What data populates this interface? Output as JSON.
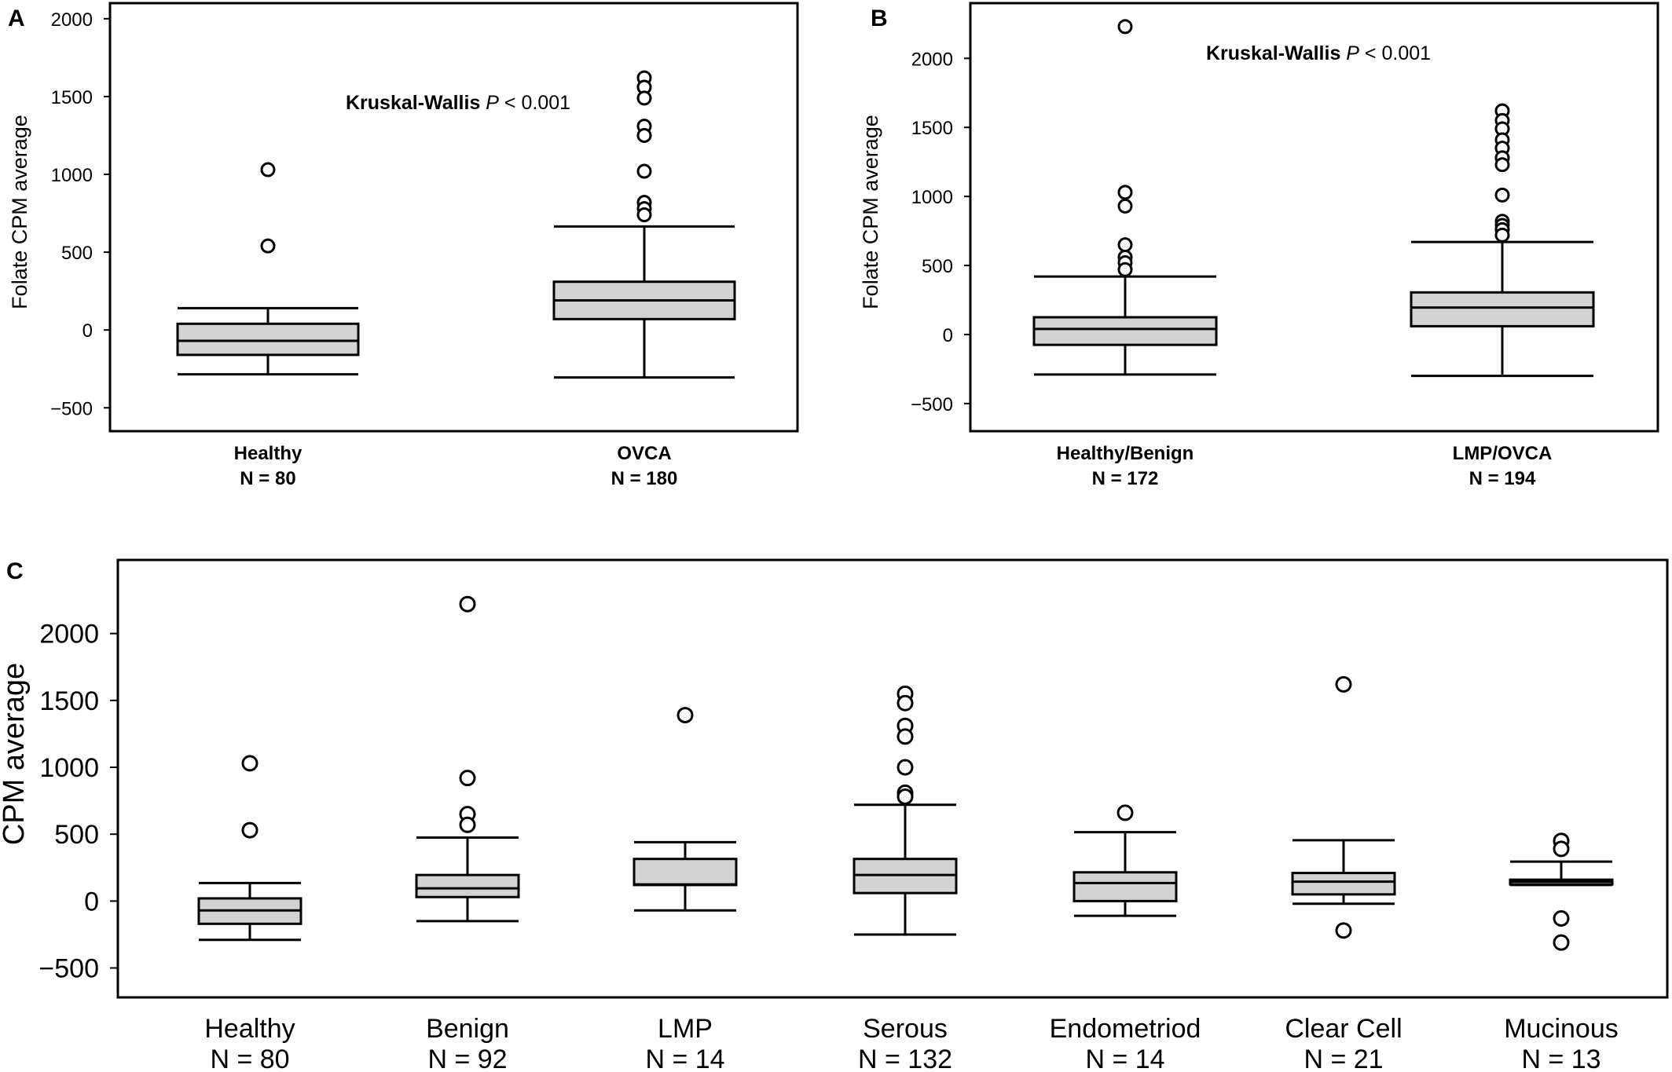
{
  "chart_data": [
    {
      "panel": "A",
      "type": "box",
      "ylabel": "Folate CPM average",
      "yticks": [
        2000,
        1500,
        1000,
        500,
        0,
        -500
      ],
      "ytick_labels": [
        "2000",
        "1500",
        "1000",
        "500",
        "0",
        "−500"
      ],
      "ylim": [
        -650,
        2100
      ],
      "annotation": {
        "prefix": "Kruskal-Wallis ",
        "italic": "P",
        "suffix": " < 0.001"
      },
      "groups": [
        {
          "name": "Healthy",
          "n_label": "N = 80",
          "q1": -160,
          "median": -70,
          "q3": 40,
          "whisker_low": -285,
          "whisker_high": 140,
          "outliers": [
            1030,
            540
          ]
        },
        {
          "name": "OVCA",
          "n_label": "N = 180",
          "q1": 70,
          "median": 190,
          "q3": 310,
          "whisker_low": -305,
          "whisker_high": 665,
          "outliers": [
            1620,
            1560,
            1490,
            1310,
            1250,
            1020,
            820,
            780,
            740
          ]
        }
      ]
    },
    {
      "panel": "B",
      "type": "box",
      "ylabel": "Folate CPM average",
      "yticks": [
        2000,
        1500,
        1000,
        500,
        0,
        -500
      ],
      "ytick_labels": [
        "2000",
        "1500",
        "1000",
        "500",
        "0",
        "−500"
      ],
      "ylim": [
        -700,
        2400
      ],
      "annotation": {
        "prefix": "Kruskal-Wallis ",
        "italic": "P",
        "suffix": " < 0.001"
      },
      "groups": [
        {
          "name": "Healthy/Benign",
          "n_label": "N = 172",
          "q1": -75,
          "median": 40,
          "q3": 125,
          "whisker_low": -290,
          "whisker_high": 420,
          "outliers": [
            2230,
            1030,
            930,
            650,
            560,
            520,
            470
          ]
        },
        {
          "name": "LMP/OVCA",
          "n_label": "N = 194",
          "q1": 60,
          "median": 195,
          "q3": 305,
          "whisker_low": -300,
          "whisker_high": 670,
          "outliers": [
            1620,
            1550,
            1490,
            1410,
            1350,
            1280,
            1230,
            1010,
            820,
            790,
            760,
            720
          ]
        }
      ]
    },
    {
      "panel": "C",
      "type": "box",
      "ylabel": "CPM average",
      "yticks": [
        2000,
        1500,
        1000,
        500,
        0,
        -500
      ],
      "ytick_labels": [
        "2000",
        "1500",
        "1000",
        "500",
        "0",
        "−500"
      ],
      "ylim": [
        -720,
        2550
      ],
      "groups": [
        {
          "name": "Healthy",
          "n_label": "N = 80",
          "q1": -170,
          "median": -70,
          "q3": 20,
          "whisker_low": -290,
          "whisker_high": 135,
          "outliers": [
            1030,
            530
          ]
        },
        {
          "name": "Benign",
          "n_label": "N = 92",
          "q1": 30,
          "median": 95,
          "q3": 195,
          "whisker_low": -150,
          "whisker_high": 475,
          "outliers": [
            2220,
            920,
            650,
            570
          ]
        },
        {
          "name": "LMP",
          "n_label": "N = 14",
          "q1": 120,
          "median": 125,
          "q3": 315,
          "whisker_low": -70,
          "whisker_high": 440,
          "outliers": [
            1390
          ]
        },
        {
          "name": "Serous",
          "n_label": "N = 132",
          "q1": 60,
          "median": 195,
          "q3": 315,
          "whisker_low": -250,
          "whisker_high": 720,
          "outliers": [
            1550,
            1480,
            1310,
            1230,
            1000,
            810,
            780
          ]
        },
        {
          "name": "Endometriod",
          "n_label": "N = 14",
          "q1": 0,
          "median": 135,
          "q3": 215,
          "whisker_low": -110,
          "whisker_high": 515,
          "outliers": [
            660
          ]
        },
        {
          "name": "Clear Cell",
          "n_label": "N = 21",
          "q1": 50,
          "median": 145,
          "q3": 210,
          "whisker_low": -20,
          "whisker_high": 455,
          "outliers": [
            1620,
            -220
          ]
        },
        {
          "name": "Mucinous",
          "n_label": "N = 13",
          "q1": 125,
          "median": 145,
          "q3": 160,
          "whisker_low": 120,
          "whisker_high": 295,
          "outliers": [
            450,
            390,
            -130,
            -310
          ]
        }
      ]
    }
  ]
}
